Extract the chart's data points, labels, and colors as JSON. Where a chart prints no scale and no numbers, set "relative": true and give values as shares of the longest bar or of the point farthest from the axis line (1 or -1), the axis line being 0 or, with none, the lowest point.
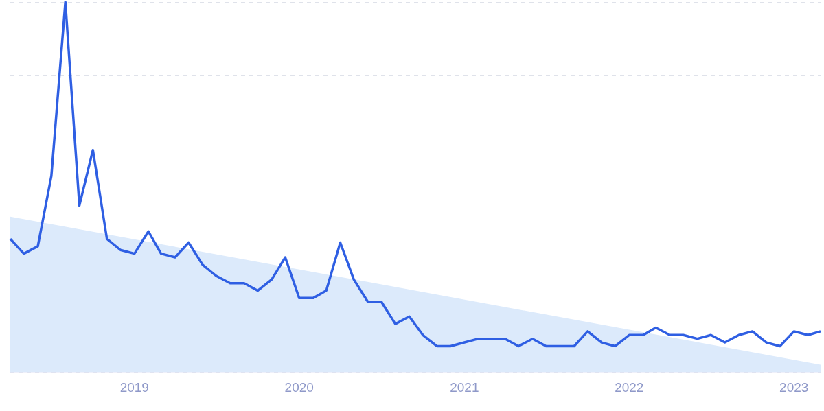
{
  "chart_data": {
    "type": "line",
    "relative": true,
    "x": [
      "2018-04",
      "2018-05",
      "2018-06",
      "2018-07",
      "2018-08",
      "2018-09",
      "2018-10",
      "2018-11",
      "2018-12",
      "2019-01",
      "2019-02",
      "2019-03",
      "2019-04",
      "2019-05",
      "2019-06",
      "2019-07",
      "2019-08",
      "2019-09",
      "2019-10",
      "2019-11",
      "2019-12",
      "2020-01",
      "2020-02",
      "2020-03",
      "2020-04",
      "2020-05",
      "2020-06",
      "2020-07",
      "2020-08",
      "2020-09",
      "2020-10",
      "2020-11",
      "2020-12",
      "2021-01",
      "2021-02",
      "2021-03",
      "2021-04",
      "2021-05",
      "2021-06",
      "2021-07",
      "2021-08",
      "2021-09",
      "2021-10",
      "2021-11",
      "2021-12",
      "2022-01",
      "2022-02",
      "2022-03",
      "2022-04",
      "2022-05",
      "2022-06",
      "2022-07",
      "2022-08",
      "2022-09",
      "2022-10",
      "2022-11",
      "2022-12",
      "2023-01",
      "2023-02",
      "2023-03"
    ],
    "series": [
      {
        "type": "area",
        "x": [
          "2018-04",
          "2023-03"
        ],
        "color": "#dceafb",
        "values": [
          0.42,
          0.02
        ]
      },
      {
        "color": "#2f5fe3",
        "values": [
          0.36,
          0.32,
          0.34,
          0.53,
          1.0,
          0.45,
          0.6,
          0.36,
          0.33,
          0.32,
          0.38,
          0.32,
          0.31,
          0.35,
          0.29,
          0.26,
          0.24,
          0.24,
          0.22,
          0.25,
          0.31,
          0.2,
          0.2,
          0.22,
          0.35,
          0.25,
          0.19,
          0.19,
          0.13,
          0.15,
          0.1,
          0.07,
          0.07,
          0.08,
          0.09,
          0.09,
          0.09,
          0.07,
          0.09,
          0.07,
          0.07,
          0.07,
          0.11,
          0.08,
          0.07,
          0.1,
          0.1,
          0.12,
          0.1,
          0.1,
          0.09,
          0.1,
          0.08,
          0.1,
          0.11,
          0.08,
          0.07,
          0.11,
          0.1,
          0.11
        ]
      }
    ],
    "xlim": [
      "2018-04",
      "2023-03"
    ],
    "xticks": [
      "2019",
      "2020",
      "2021",
      "2022",
      "2023"
    ],
    "grid": "y",
    "legend": false,
    "marker": "none",
    "line_style": "solid"
  }
}
